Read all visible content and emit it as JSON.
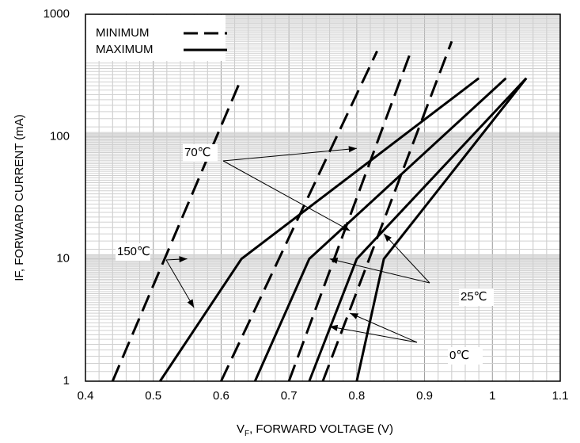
{
  "chart_data": {
    "type": "line",
    "xlabel": {
      "main": "V",
      "sub": "F",
      "rest": ", FORWARD VOLTAGE (V)"
    },
    "ylabel": "IF, FORWARD CURRENT (mA)",
    "xlim": [
      0.4,
      1.1
    ],
    "ylim": [
      1,
      1000
    ],
    "yscale": "log",
    "grid": true,
    "xticks": [
      "0.4",
      "0.5",
      "0.6",
      "0.7",
      "0.8",
      "0.9",
      "1",
      "1.1"
    ],
    "yticks": [
      {
        "v": 1,
        "label": "1"
      },
      {
        "v": 10,
        "label": "10"
      },
      {
        "v": 100,
        "label": "100"
      },
      {
        "v": 1000,
        "label": "1000"
      }
    ],
    "legend": {
      "position": "top-left",
      "entries": [
        {
          "label": "MINIMUM",
          "style": "dashed"
        },
        {
          "label": "MAXIMUM",
          "style": "solid"
        }
      ]
    },
    "series": [
      {
        "temp": "150℃",
        "style": "dashed",
        "points": [
          [
            0.44,
            1
          ],
          [
            0.63,
            300
          ]
        ]
      },
      {
        "temp": "70℃",
        "style": "dashed",
        "points": [
          [
            0.6,
            1
          ],
          [
            0.83,
            500
          ]
        ]
      },
      {
        "temp": "25℃",
        "style": "dashed",
        "points": [
          [
            0.7,
            1
          ],
          [
            0.88,
            500
          ]
        ]
      },
      {
        "temp": "0℃",
        "style": "dashed",
        "points": [
          [
            0.75,
            1
          ],
          [
            0.94,
            600
          ]
        ]
      },
      {
        "temp": "150℃",
        "style": "solid",
        "points": [
          [
            0.51,
            1
          ],
          [
            0.63,
            10
          ],
          [
            0.98,
            300
          ]
        ]
      },
      {
        "temp": "70℃",
        "style": "solid",
        "points": [
          [
            0.65,
            1
          ],
          [
            0.73,
            10
          ],
          [
            1.02,
            300
          ]
        ]
      },
      {
        "temp": "25℃",
        "style": "solid",
        "points": [
          [
            0.73,
            1
          ],
          [
            0.8,
            10
          ],
          [
            1.05,
            300
          ]
        ]
      },
      {
        "temp": "0℃",
        "style": "solid",
        "points": [
          [
            0.8,
            1
          ],
          [
            0.84,
            10
          ],
          [
            1.05,
            300
          ]
        ]
      }
    ],
    "annotations": [
      {
        "label": "70℃",
        "arrows_to": [
          [
            0.8,
            80
          ],
          [
            0.79,
            17
          ]
        ]
      },
      {
        "label": "150℃",
        "arrows_to": [
          [
            0.55,
            10
          ],
          [
            0.56,
            4
          ]
        ]
      },
      {
        "label": "25℃",
        "arrows_to": [
          [
            0.76,
            10
          ],
          [
            0.84,
            16
          ]
        ]
      },
      {
        "label": "0℃",
        "arrows_to": [
          [
            0.76,
            2.8
          ],
          [
            0.79,
            3.6
          ]
        ]
      }
    ]
  }
}
